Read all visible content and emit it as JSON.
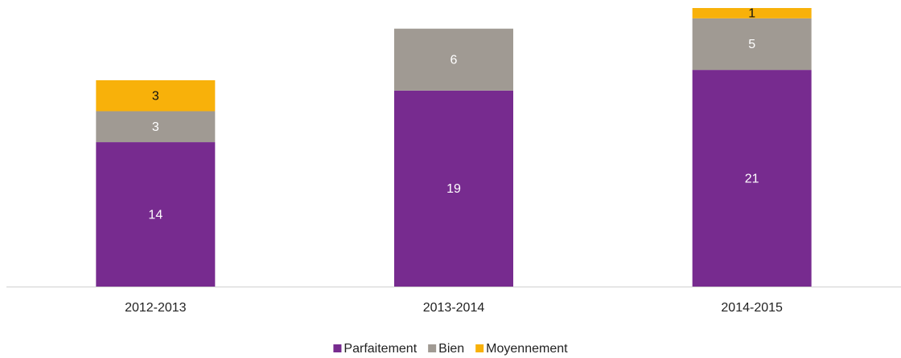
{
  "chart_data": {
    "type": "stacked_bar",
    "categories": [
      "2012-2013",
      "2013-2014",
      "2014-2015"
    ],
    "series": [
      {
        "name": "Parfaitement",
        "color": "#772b8f",
        "values": [
          14,
          19,
          21
        ]
      },
      {
        "name": "Bien",
        "color": "#a09a93",
        "values": [
          3,
          6,
          5
        ]
      },
      {
        "name": "Moyennement",
        "color": "#f8b10a",
        "values": [
          3,
          null,
          1
        ]
      }
    ],
    "ylim": [
      0,
      27
    ],
    "legend": "bottom"
  }
}
